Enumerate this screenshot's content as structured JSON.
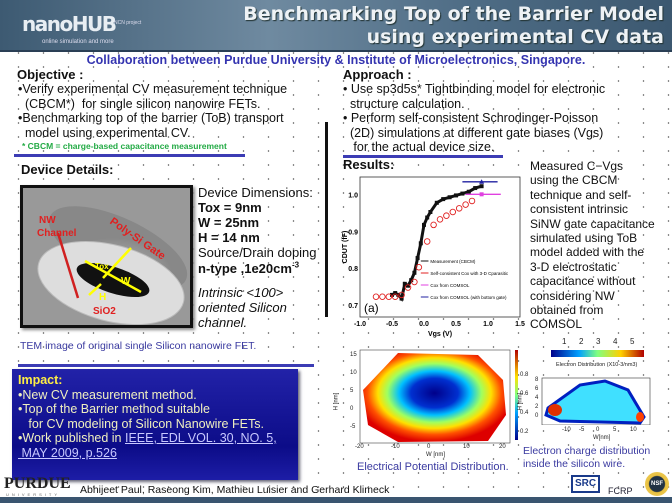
{
  "header": {
    "logo": "nanoHUB",
    "logo_tagline": "online simulation and more",
    "ncn": "NCN project",
    "title_line1": "Benchmarking Top of the Barrier Model",
    "title_line2": "using experimental CV data"
  },
  "subtitle": "Collaboration  between Purdue University  & Institute of Microelectronics, Singapore.",
  "objective": {
    "heading": "Objective :",
    "lines": [
      "•Verify experimental CV measurement technique",
      "  (CBCM*)  for single silicon nanowire FETs.",
      "•Benchmarking  top of the barrier (ToB) transport",
      "  model using experimental CV."
    ],
    "note": "* CBCM  = charge-based capacitance measurement"
  },
  "approach": {
    "heading": "Approach :",
    "lines": [
      "• Use sp3d5s* Tightbinding model for electronic",
      "  structure calculation.",
      "• Perform self-consistent Schrodinger-Poisson",
      "  (2D) simulations at different gate biases (Vgs)",
      "   for the actual device size."
    ]
  },
  "device": {
    "heading": "Device Details:",
    "image_labels": {
      "nw": "NW",
      "channel": "Channel",
      "gate": "Poly-Si Gate",
      "tox": "Tox",
      "w": "W",
      "h": "H",
      "sio2": "SiO2"
    },
    "dims_title": "Device Dimensions:",
    "tox": "Tox = 9nm",
    "w": "W = 25nm",
    "h": "H  = 14 nm",
    "doping_title": "Source/Drain doping",
    "doping": "n-type ,1e20cm",
    "doping_exp": "-3",
    "orient": [
      "Intrinsic <100>",
      "oriented Silicon",
      "channel."
    ],
    "caption": "TEM image of original single Silicon nanowire FET."
  },
  "impact": {
    "heading": "Impact:",
    "lines": [
      "•New CV measurement method.",
      "•Top of the Barrier method suitable",
      "   for CV modeling of Silicon Nanowire FETs.",
      "•Work published in "
    ],
    "link1": "IEEE, EDL VOL. 30, NO. 5,",
    "link2": " MAY 2009, p.526"
  },
  "results": {
    "heading": "Results:",
    "text": [
      "Measured C−Vgs",
      "using the CBCM",
      "technique and self-",
      "consistent intrinsic",
      "SiNW gate capacitance",
      "simulated using ToB",
      "model  added with the",
      "3-D  electrostatic",
      "capacitance without",
      "considering NW",
      "obtained from",
      "COMSOL"
    ]
  },
  "chart_data": {
    "type": "scatter",
    "ylabel": "CDUT (fF)",
    "xlabel": "Vgs (V)",
    "xlim": [
      -1.0,
      1.5
    ],
    "ylim": [
      0.67,
      1.05
    ],
    "xticks": [
      "-1.0",
      "-0.5",
      "0.0",
      "0.5",
      "1.0",
      "1.5"
    ],
    "yticks": [
      "0.7",
      "0.8",
      "0.9",
      "1.0"
    ],
    "panel": "(a)",
    "legend": [
      "Measurement (CBCM)",
      "Self-consistent Cox with 3-D Cparasitic",
      "Cox from COMSOL",
      "Cox from COMSOL (with bottom gate)"
    ],
    "series": [
      {
        "name": "Measurement (CBCM)",
        "x": [
          -0.5,
          -0.45,
          -0.4,
          -0.35,
          -0.3,
          -0.25,
          -0.2,
          -0.15,
          -0.1,
          -0.05,
          0.0,
          0.05,
          0.1,
          0.2,
          0.3,
          0.4,
          0.5,
          0.6,
          0.7,
          0.8,
          0.9
        ],
        "y": [
          0.73,
          0.735,
          0.73,
          0.72,
          0.76,
          0.755,
          0.77,
          0.79,
          0.83,
          0.87,
          0.92,
          0.94,
          0.955,
          0.98,
          0.99,
          0.995,
          1.0,
          1.005,
          1.01,
          1.02,
          1.025
        ]
      },
      {
        "name": "Self-consistent Cox with 3-D Cparasitic",
        "x": [
          -0.75,
          -0.65,
          -0.55,
          -0.45,
          -0.35,
          -0.25,
          -0.15,
          -0.08,
          0.05,
          0.15,
          0.25,
          0.35,
          0.45,
          0.55,
          0.65,
          0.75
        ],
        "y": [
          0.725,
          0.725,
          0.725,
          0.725,
          0.73,
          0.75,
          0.765,
          0.805,
          0.875,
          0.92,
          0.935,
          0.945,
          0.955,
          0.965,
          0.975,
          0.985
        ]
      },
      {
        "name": "Cox from COMSOL",
        "x": [
          0.9
        ],
        "y": [
          1.003
        ]
      },
      {
        "name": "Cox from COMSOL (with bottom gate)",
        "x": [
          0.9
        ],
        "y": [
          1.037
        ]
      }
    ]
  },
  "potential": {
    "caption": "Electrical Potential Distribution.",
    "xlabel": "W [nm]",
    "ylabel": "H [nm]",
    "xticks": [
      "-20",
      "-10",
      "0",
      "10",
      "20"
    ],
    "yticks": [
      "15",
      "10",
      "5",
      "0",
      "-5"
    ],
    "cbar": [
      "0.8",
      "0.6",
      "0.4",
      "0.2"
    ]
  },
  "electron": {
    "caption1": "Electron charge distribution",
    "caption2": "inside the silicon wire.",
    "cbar_ticks": [
      "1",
      "2",
      "3",
      "4",
      "5"
    ],
    "cbar_label": "Electron Distribution (X10-3/nm3)",
    "xlabel": "W[nm]",
    "ylabel": "H [nm]",
    "xticks": [
      "-10",
      "-5",
      "0",
      "5",
      "10"
    ],
    "yticks": [
      "8",
      "6",
      "4",
      "2",
      "0"
    ]
  },
  "footer": {
    "purdue": "PURDUE",
    "purdue_sub": "UNIVERSITY",
    "authors": "Abhijeet Paul, Raseong Kim, Mathieu Luisier and Gerhard Klimeck",
    "src": "SRC",
    "fcrp": "FCRP",
    "nsf": "NSF"
  }
}
